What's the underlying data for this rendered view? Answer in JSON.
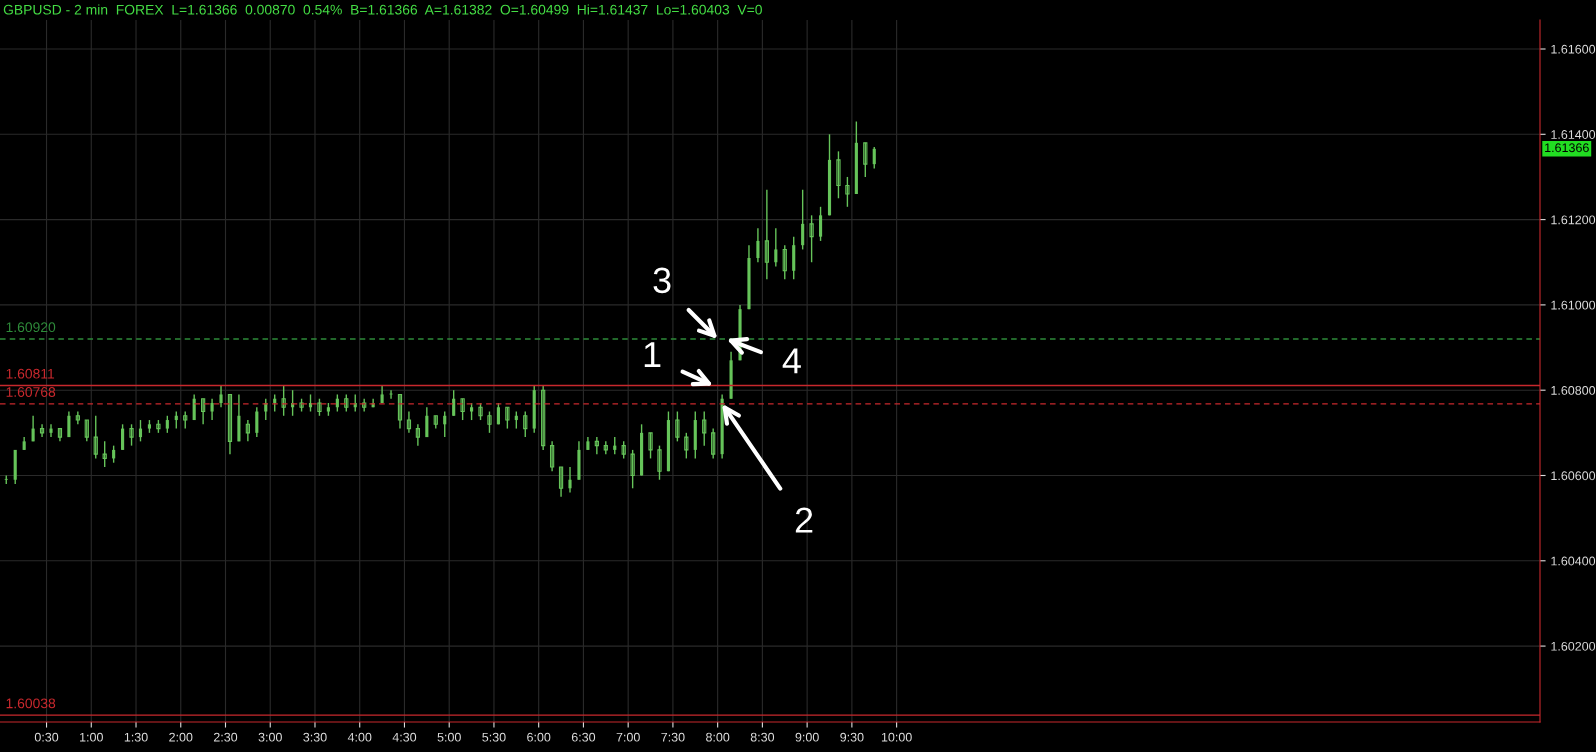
{
  "chart_data": {
    "type": "candlestick",
    "title": "GBPUSD - 2 min  FOREX  L=1.61366  0.00870  0.54%  B=1.61366  A=1.61382  O=1.60499  Hi=1.61437  Lo=1.60403  V=0",
    "x": [
      0.05,
      0.15,
      0.25,
      0.35,
      0.45,
      0.55,
      0.65,
      0.75,
      0.85,
      0.95,
      1.05,
      1.15,
      1.25,
      1.35,
      1.45,
      1.55,
      1.65,
      1.75,
      1.85,
      1.95,
      2.05,
      2.15,
      2.25,
      2.35,
      2.45,
      2.55,
      2.65,
      2.75,
      2.85,
      2.95,
      3.05,
      3.15,
      3.25,
      3.35,
      3.45,
      3.55,
      3.65,
      3.75,
      3.85,
      3.95,
      4.05,
      4.15,
      4.25,
      4.35,
      4.45,
      4.55,
      4.65,
      4.75,
      4.85,
      4.95,
      5.05,
      5.15,
      5.25,
      5.35,
      5.45,
      5.55,
      5.65,
      5.75,
      5.85,
      5.95,
      6.05,
      6.15,
      6.25,
      6.35,
      6.45,
      6.55,
      6.65,
      6.75,
      6.85,
      6.95,
      7.05,
      7.15,
      7.25,
      7.35,
      7.45,
      7.55,
      7.65,
      7.75,
      7.85,
      7.95,
      8.05,
      8.15,
      8.25,
      8.35,
      8.45,
      8.55,
      8.65,
      8.75,
      8.85,
      8.95,
      9.05,
      9.15,
      9.25,
      9.35,
      9.45,
      9.55,
      9.65,
      9.75
    ],
    "color": "#66c45a",
    "ohlc": [
      [
        1.6059,
        1.606,
        1.6058,
        1.6059
      ],
      [
        1.6059,
        1.6066,
        1.6058,
        1.6066
      ],
      [
        1.6066,
        1.6069,
        1.6066,
        1.6068
      ],
      [
        1.6068,
        1.6074,
        1.6068,
        1.6071
      ],
      [
        1.6071,
        1.6072,
        1.6069,
        1.607
      ],
      [
        1.607,
        1.6072,
        1.6069,
        1.6071
      ],
      [
        1.6071,
        1.6071,
        1.6068,
        1.6069
      ],
      [
        1.6069,
        1.6075,
        1.6069,
        1.6074
      ],
      [
        1.6074,
        1.6075,
        1.6072,
        1.6073
      ],
      [
        1.6073,
        1.6073,
        1.6068,
        1.6069
      ],
      [
        1.6069,
        1.6074,
        1.6064,
        1.6065
      ],
      [
        1.6065,
        1.6068,
        1.6062,
        1.6064
      ],
      [
        1.6064,
        1.6067,
        1.6063,
        1.6066
      ],
      [
        1.6066,
        1.6072,
        1.6066,
        1.6071
      ],
      [
        1.6071,
        1.6072,
        1.6067,
        1.6069
      ],
      [
        1.6069,
        1.6073,
        1.6068,
        1.6071
      ],
      [
        1.6071,
        1.6073,
        1.607,
        1.6072
      ],
      [
        1.6072,
        1.6073,
        1.607,
        1.6071
      ],
      [
        1.6071,
        1.6074,
        1.607,
        1.6073
      ],
      [
        1.6073,
        1.6075,
        1.6071,
        1.6074
      ],
      [
        1.6074,
        1.6075,
        1.6071,
        1.6073
      ],
      [
        1.6073,
        1.6079,
        1.6073,
        1.6078
      ],
      [
        1.6078,
        1.6078,
        1.6072,
        1.6075
      ],
      [
        1.6075,
        1.6078,
        1.6073,
        1.6077
      ],
      [
        1.6077,
        1.6081,
        1.6076,
        1.6079
      ],
      [
        1.6079,
        1.6079,
        1.6065,
        1.6068
      ],
      [
        1.6068,
        1.6079,
        1.6068,
        1.6074
      ],
      [
        1.6072,
        1.6073,
        1.6068,
        1.607
      ],
      [
        1.607,
        1.6076,
        1.6069,
        1.6075
      ],
      [
        1.6075,
        1.6078,
        1.6073,
        1.6077
      ],
      [
        1.6077,
        1.6079,
        1.6075,
        1.6078
      ],
      [
        1.6078,
        1.6081,
        1.6074,
        1.6076
      ],
      [
        1.6076,
        1.608,
        1.6074,
        1.6077
      ],
      [
        1.6077,
        1.6078,
        1.6075,
        1.6076
      ],
      [
        1.6076,
        1.6079,
        1.6075,
        1.6077
      ],
      [
        1.6077,
        1.6078,
        1.6074,
        1.6075
      ],
      [
        1.6075,
        1.6077,
        1.6074,
        1.6076
      ],
      [
        1.6076,
        1.6079,
        1.6075,
        1.6078
      ],
      [
        1.6078,
        1.6079,
        1.6075,
        1.6076
      ],
      [
        1.6076,
        1.6079,
        1.6075,
        1.6077
      ],
      [
        1.6077,
        1.6078,
        1.6075,
        1.6076
      ],
      [
        1.6076,
        1.6078,
        1.6076,
        1.6077
      ],
      [
        1.6077,
        1.6081,
        1.6077,
        1.6079
      ],
      [
        1.6079,
        1.608,
        1.6078,
        1.6079
      ],
      [
        1.6079,
        1.6079,
        1.6071,
        1.6073
      ],
      [
        1.6073,
        1.6075,
        1.607,
        1.6071
      ],
      [
        1.6071,
        1.6072,
        1.6067,
        1.6069
      ],
      [
        1.6069,
        1.6076,
        1.6069,
        1.6074
      ],
      [
        1.6074,
        1.6074,
        1.6071,
        1.6072
      ],
      [
        1.6072,
        1.6075,
        1.6069,
        1.6074
      ],
      [
        1.6074,
        1.608,
        1.6074,
        1.6078
      ],
      [
        1.6078,
        1.6078,
        1.6073,
        1.6075
      ],
      [
        1.6075,
        1.6077,
        1.6073,
        1.6076
      ],
      [
        1.6076,
        1.6077,
        1.6073,
        1.6074
      ],
      [
        1.6074,
        1.6075,
        1.607,
        1.6072
      ],
      [
        1.6072,
        1.6077,
        1.6072,
        1.6076
      ],
      [
        1.6076,
        1.6076,
        1.6071,
        1.6073
      ],
      [
        1.6073,
        1.6075,
        1.6071,
        1.6074
      ],
      [
        1.6074,
        1.6075,
        1.6069,
        1.6071
      ],
      [
        1.6071,
        1.6081,
        1.607,
        1.608
      ],
      [
        1.608,
        1.6081,
        1.6066,
        1.6067
      ],
      [
        1.6067,
        1.6068,
        1.6061,
        1.6062
      ],
      [
        1.6062,
        1.6062,
        1.6055,
        1.6057
      ],
      [
        1.6057,
        1.6062,
        1.6056,
        1.6059
      ],
      [
        1.6059,
        1.6068,
        1.6059,
        1.6066
      ],
      [
        1.6066,
        1.6069,
        1.6066,
        1.6068
      ],
      [
        1.6068,
        1.6069,
        1.6065,
        1.6067
      ],
      [
        1.6067,
        1.6068,
        1.6065,
        1.6066
      ],
      [
        1.6066,
        1.6069,
        1.6065,
        1.6067
      ],
      [
        1.6067,
        1.6068,
        1.6064,
        1.6065
      ],
      [
        1.6065,
        1.6066,
        1.6057,
        1.606
      ],
      [
        1.606,
        1.6072,
        1.606,
        1.607
      ],
      [
        1.607,
        1.607,
        1.6064,
        1.6066
      ],
      [
        1.6066,
        1.6067,
        1.6059,
        1.6061
      ],
      [
        1.6061,
        1.6075,
        1.6061,
        1.6073
      ],
      [
        1.6073,
        1.6075,
        1.6068,
        1.6069
      ],
      [
        1.6069,
        1.607,
        1.6064,
        1.6066
      ],
      [
        1.6066,
        1.6075,
        1.6064,
        1.6073
      ],
      [
        1.6073,
        1.6075,
        1.6067,
        1.607
      ],
      [
        1.607,
        1.6071,
        1.6064,
        1.6065
      ],
      [
        1.6065,
        1.6079,
        1.6064,
        1.6078
      ],
      [
        1.6078,
        1.6089,
        1.6078,
        1.6087
      ],
      [
        1.6087,
        1.61,
        1.6087,
        1.6099
      ],
      [
        1.6099,
        1.6114,
        1.6099,
        1.6111
      ],
      [
        1.6111,
        1.6118,
        1.611,
        1.6115
      ],
      [
        1.6115,
        1.6127,
        1.6106,
        1.611
      ],
      [
        1.611,
        1.6118,
        1.6109,
        1.6113
      ],
      [
        1.6113,
        1.6114,
        1.6106,
        1.6108
      ],
      [
        1.6108,
        1.6116,
        1.6106,
        1.6114
      ],
      [
        1.6114,
        1.6127,
        1.6113,
        1.6119
      ],
      [
        1.6119,
        1.6121,
        1.611,
        1.6116
      ],
      [
        1.6116,
        1.6123,
        1.6115,
        1.6121
      ],
      [
        1.6121,
        1.614,
        1.6121,
        1.6134
      ],
      [
        1.6134,
        1.6136,
        1.6125,
        1.6128
      ],
      [
        1.6128,
        1.613,
        1.6123,
        1.6126
      ],
      [
        1.6126,
        1.6143,
        1.6126,
        1.6138
      ],
      [
        1.6138,
        1.6138,
        1.613,
        1.6133
      ],
      [
        1.6133,
        1.6137,
        1.6132,
        1.61366
      ]
    ],
    "xlim": [
      -0.02,
      17.19
    ],
    "ylim": [
      1.60022,
      1.61668
    ],
    "xticks": [
      {
        "value": 0.5,
        "label": "0:30"
      },
      {
        "value": 1.0,
        "label": "1:00"
      },
      {
        "value": 1.5,
        "label": "1:30"
      },
      {
        "value": 2.0,
        "label": "2:00"
      },
      {
        "value": 2.5,
        "label": "2:30"
      },
      {
        "value": 3.0,
        "label": "3:00"
      },
      {
        "value": 3.5,
        "label": "3:30"
      },
      {
        "value": 4.0,
        "label": "4:00"
      },
      {
        "value": 4.5,
        "label": "4:30"
      },
      {
        "value": 5.0,
        "label": "5:00"
      },
      {
        "value": 5.5,
        "label": "5:30"
      },
      {
        "value": 6.0,
        "label": "6:00"
      },
      {
        "value": 6.5,
        "label": "6:30"
      },
      {
        "value": 7.0,
        "label": "7:00"
      },
      {
        "value": 7.5,
        "label": "7:30"
      },
      {
        "value": 8.0,
        "label": "8:00"
      },
      {
        "value": 8.5,
        "label": "8:30"
      },
      {
        "value": 9.0,
        "label": "9:00"
      },
      {
        "value": 9.5,
        "label": "9:30"
      },
      {
        "value": 10.0,
        "label": "10:00"
      }
    ],
    "yticks": [
      {
        "value": 1.602,
        "label": "1.60200"
      },
      {
        "value": 1.604,
        "label": "1.60400"
      },
      {
        "value": 1.606,
        "label": "1.60600"
      },
      {
        "value": 1.608,
        "label": "1.60800"
      },
      {
        "value": 1.61,
        "label": "1.61000"
      },
      {
        "value": 1.612,
        "label": "1.61200"
      },
      {
        "value": 1.614,
        "label": "1.61400"
      },
      {
        "value": 1.616,
        "label": "1.61600"
      }
    ],
    "grid": true,
    "ref_lines": [
      {
        "axis": "y",
        "value": 1.6092,
        "label": "1.60920",
        "color": "#2e8b3a",
        "line_style": "dashed"
      },
      {
        "axis": "y",
        "value": 1.60811,
        "label": "1.60811",
        "color": "#c8282d",
        "line_style": "solid"
      },
      {
        "axis": "y",
        "value": 1.60768,
        "label": "1.60768",
        "color": "#c8282d",
        "line_style": "dashed"
      },
      {
        "axis": "y",
        "value": 1.60038,
        "label": "1.60038",
        "color": "#c8282d",
        "line_style": "solid"
      }
    ],
    "annotations": [
      {
        "text": "1",
        "x": 7.95,
        "y": 1.60811
      },
      {
        "text": "2",
        "x": 8.05,
        "y": 1.60768
      },
      {
        "text": "3",
        "x": 8.0,
        "y": 1.6092
      },
      {
        "text": "4",
        "x": 8.1,
        "y": 1.6092
      },
      "1.61366"
    ]
  }
}
